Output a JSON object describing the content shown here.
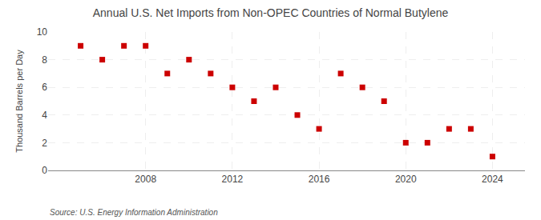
{
  "chart_data": {
    "type": "scatter",
    "title": "Annual U.S. Net Imports from Non-OPEC Countries of Normal Butylene",
    "ylabel": "Thousand Barrels per Day",
    "annotations": [
      "Source: U.S. Energy Information Administration"
    ],
    "x": [
      2005,
      2006,
      2007,
      2008,
      2009,
      2010,
      2011,
      2012,
      2013,
      2014,
      2015,
      2016,
      2017,
      2018,
      2019,
      2020,
      2021,
      2022,
      2023,
      2024
    ],
    "values": [
      9,
      8,
      9,
      9,
      7,
      8,
      7,
      6,
      5,
      6,
      4,
      3,
      7,
      6,
      5,
      2,
      2,
      3,
      3,
      1
    ],
    "color": "#cc0000",
    "marker": "square",
    "xlim": [
      2003.5,
      2025.5
    ],
    "ylim": [
      0,
      10
    ],
    "xticks": [
      2008,
      2012,
      2016,
      2020,
      2024
    ],
    "yticks": [
      0,
      2,
      4,
      6,
      8,
      10
    ],
    "grid": true
  }
}
